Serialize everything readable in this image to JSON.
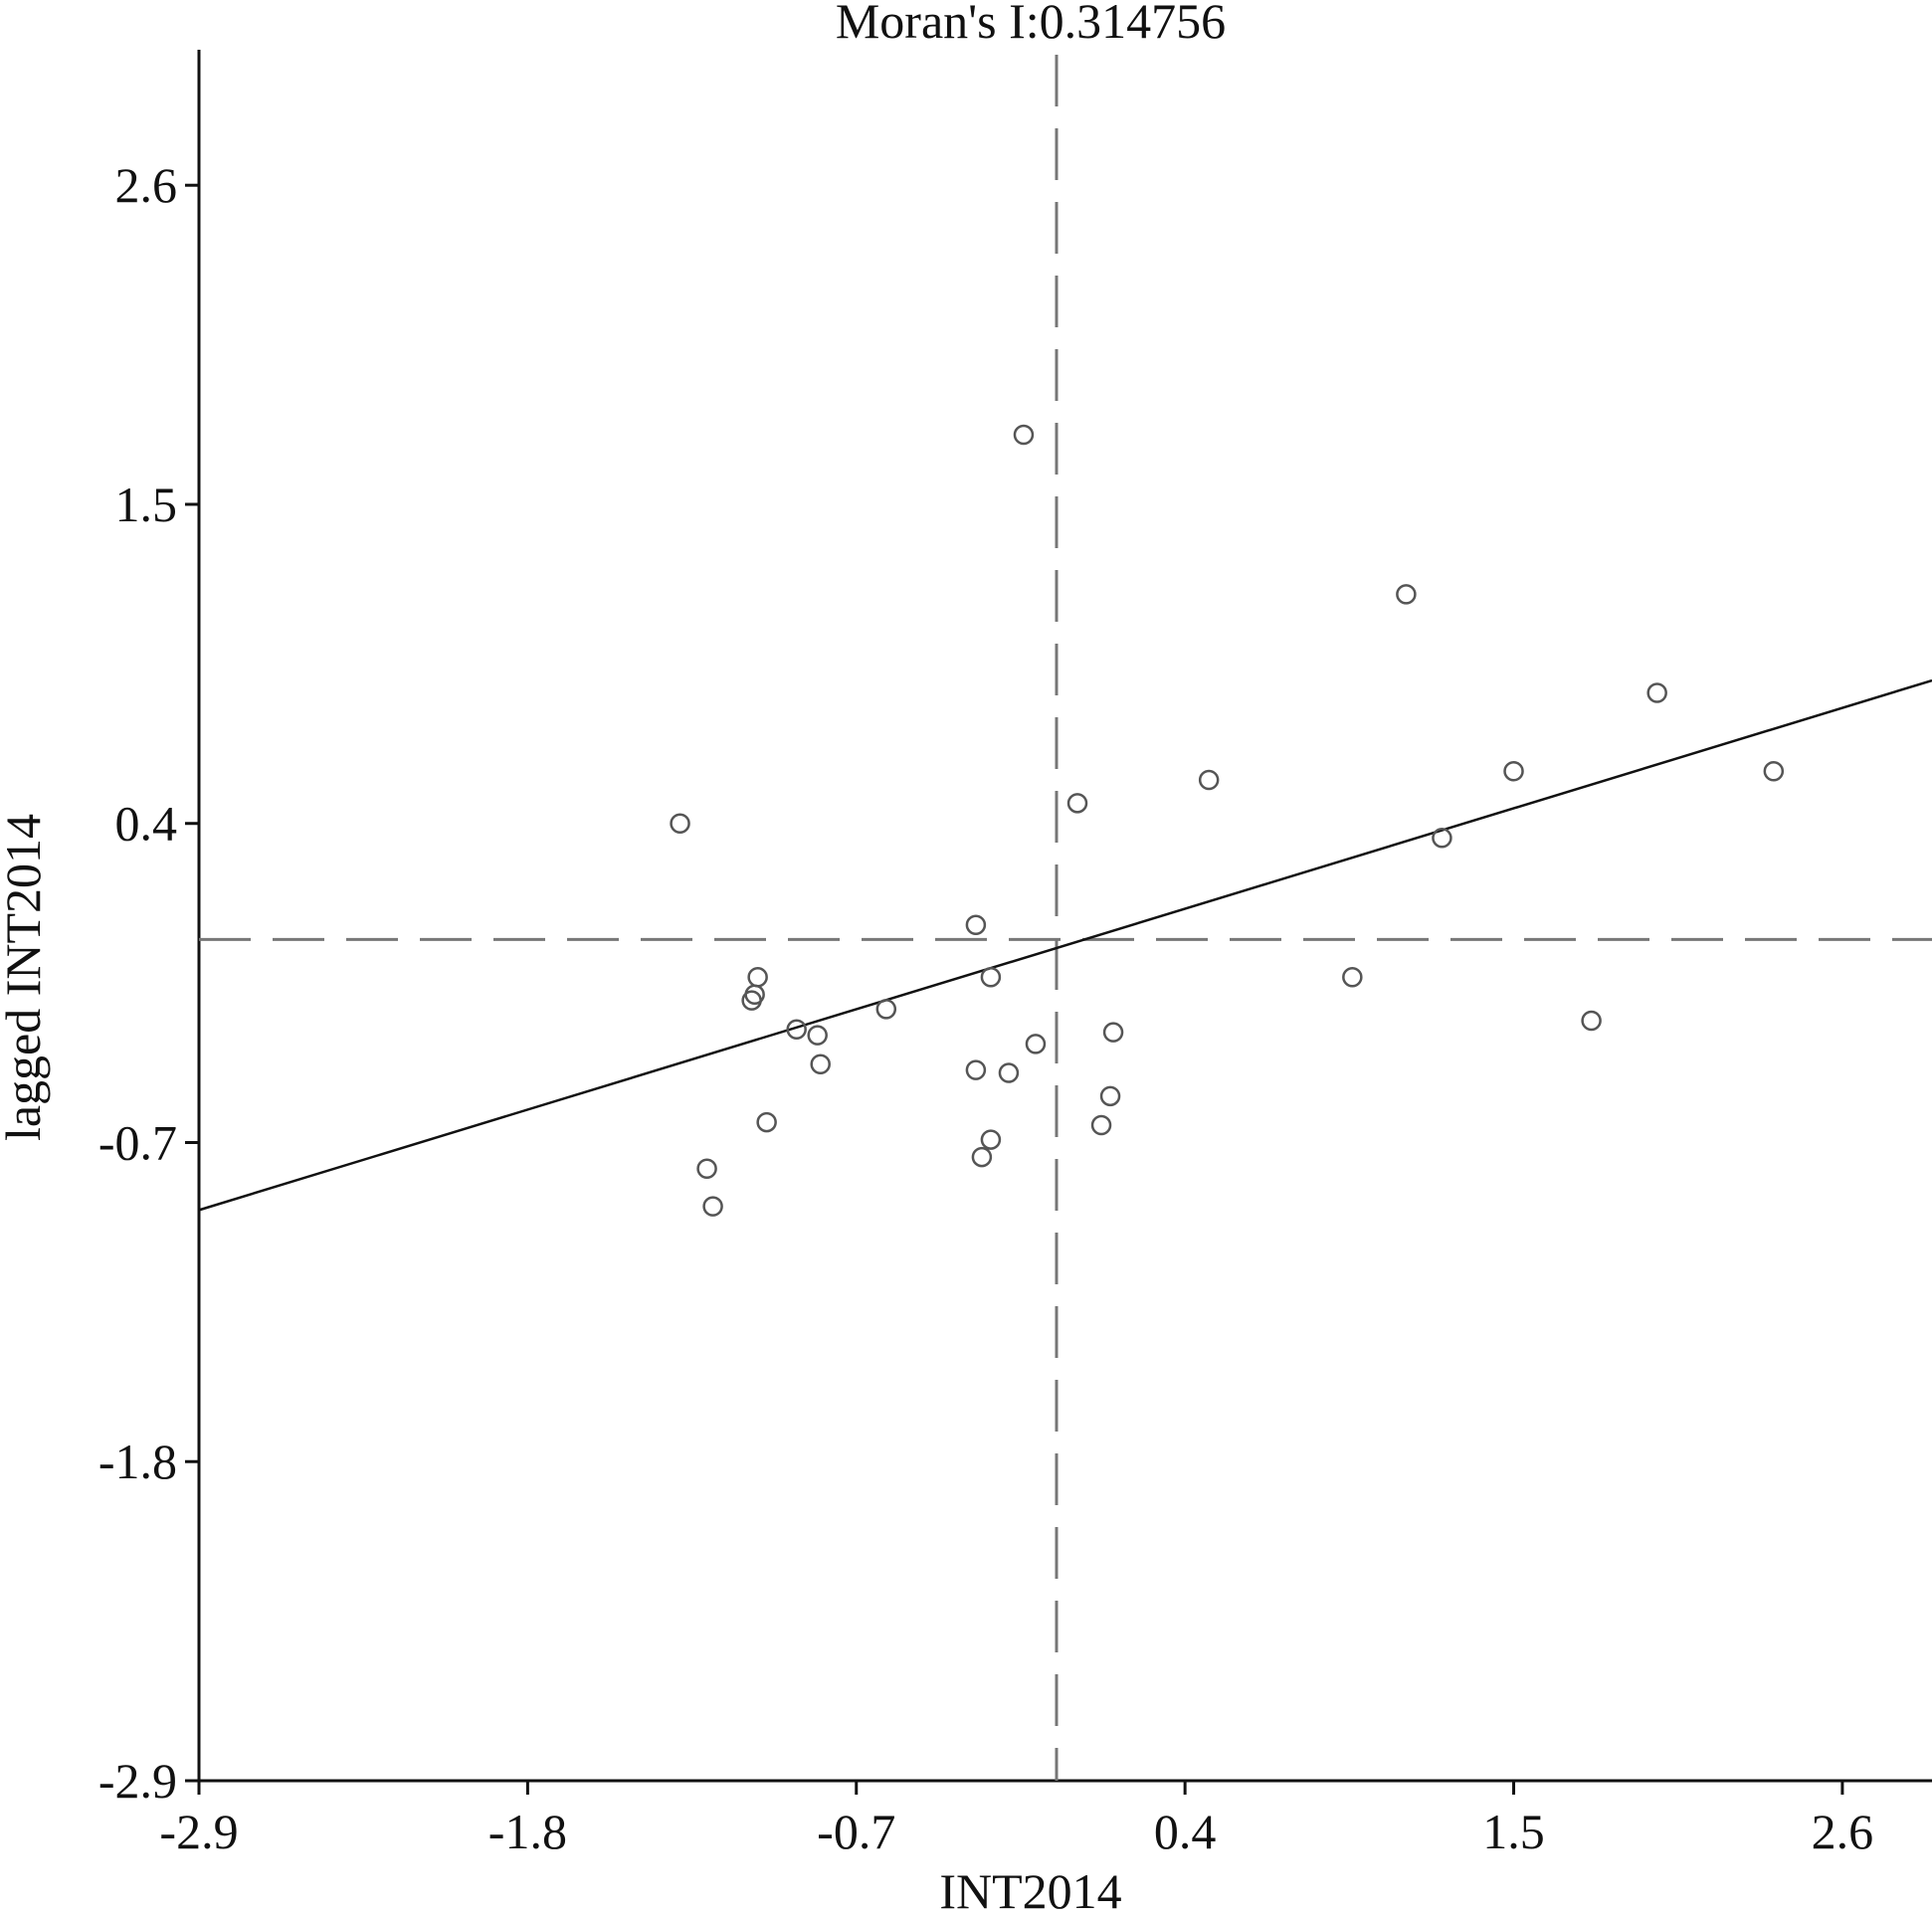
{
  "chart_data": {
    "type": "scatter",
    "title": "Moran's I:0.314756",
    "xlabel": "INT2014",
    "ylabel": "lagged INT2014",
    "xlim": [
      -2.9,
      2.9
    ],
    "ylim": [
      -2.9,
      3.05
    ],
    "x_ticks": [
      -2.9,
      -1.8,
      -0.7,
      0.4,
      1.5,
      2.6
    ],
    "x_tick_labels": [
      "-2.9",
      "-1.8",
      "-0.7",
      "0.4",
      "1.5",
      "2.6"
    ],
    "y_ticks": [
      -2.9,
      -1.8,
      -0.7,
      0.4,
      1.5,
      2.6
    ],
    "y_tick_labels": [
      "-2.9",
      "-1.8",
      "-0.7",
      "0.4",
      "1.5",
      "2.6"
    ],
    "grid": false,
    "reference_lines": {
      "vertical_x": -0.03,
      "horizontal_y": 0.0,
      "style": "dashed",
      "color": "#777777"
    },
    "regression_line": {
      "slope": 0.314756,
      "intercept": -0.02,
      "color": "#111111"
    },
    "marker": {
      "shape": "open-circle",
      "color": "#555555"
    },
    "points": [
      {
        "x": -0.14,
        "y": 1.74
      },
      {
        "x": 1.14,
        "y": 1.19
      },
      {
        "x": 1.98,
        "y": 0.85
      },
      {
        "x": 1.5,
        "y": 0.58
      },
      {
        "x": 2.37,
        "y": 0.58
      },
      {
        "x": 0.48,
        "y": 0.55
      },
      {
        "x": 0.04,
        "y": 0.47
      },
      {
        "x": -1.29,
        "y": 0.4
      },
      {
        "x": 1.26,
        "y": 0.35
      },
      {
        "x": -0.3,
        "y": 0.05
      },
      {
        "x": -1.03,
        "y": -0.13
      },
      {
        "x": -0.25,
        "y": -0.13
      },
      {
        "x": 0.96,
        "y": -0.13
      },
      {
        "x": -1.04,
        "y": -0.19
      },
      {
        "x": -1.05,
        "y": -0.21
      },
      {
        "x": -0.6,
        "y": -0.24
      },
      {
        "x": -0.9,
        "y": -0.31
      },
      {
        "x": -0.83,
        "y": -0.33
      },
      {
        "x": 0.16,
        "y": -0.32
      },
      {
        "x": 1.76,
        "y": -0.28
      },
      {
        "x": -0.1,
        "y": -0.36
      },
      {
        "x": -0.82,
        "y": -0.43
      },
      {
        "x": -0.3,
        "y": -0.45
      },
      {
        "x": -0.19,
        "y": -0.46
      },
      {
        "x": 0.15,
        "y": -0.54
      },
      {
        "x": -1.0,
        "y": -0.63
      },
      {
        "x": 0.12,
        "y": -0.64
      },
      {
        "x": -0.25,
        "y": -0.69
      },
      {
        "x": -0.28,
        "y": -0.75
      },
      {
        "x": -1.2,
        "y": -0.79
      },
      {
        "x": -1.18,
        "y": -0.92
      }
    ]
  }
}
